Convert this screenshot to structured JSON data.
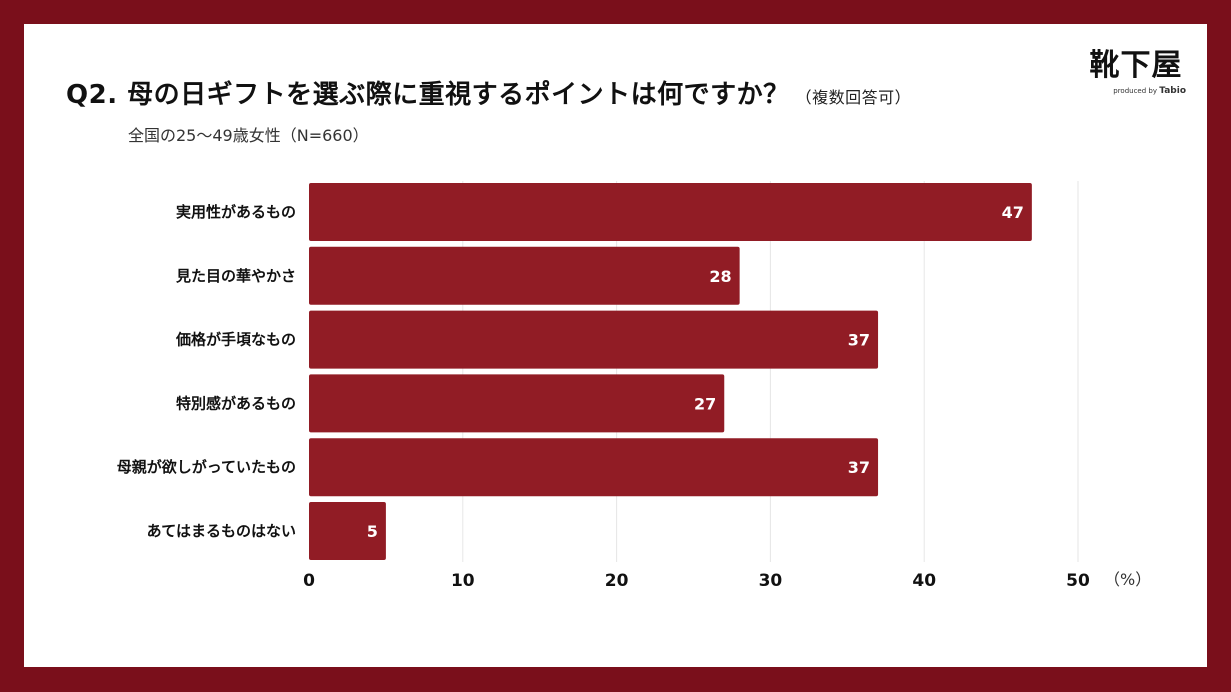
{
  "header": {
    "title": "Q2. 母の日ギフトを選ぶ際に重視するポイントは何ですか？",
    "title_note": "（複数回答可）",
    "subtitle": "全国の25〜49歳女性（N=660）"
  },
  "logo": {
    "name": "靴下屋",
    "produced_by": "produced by",
    "brand": "Tabio"
  },
  "chart_data": {
    "type": "bar",
    "orientation": "horizontal",
    "categories": [
      "実用性があるもの",
      "見た目の華やかさ",
      "価格が手頃なもの",
      "特別感があるもの",
      "母親が欲しがっていたもの",
      "あてはまるものはない"
    ],
    "values": [
      47,
      28,
      37,
      27,
      37,
      5
    ],
    "value_labels": [
      "47",
      "28",
      "37",
      "27",
      "37",
      "5"
    ],
    "xlim": [
      0,
      50
    ],
    "xticks": [
      "0",
      "10",
      "20",
      "30",
      "40",
      "50"
    ],
    "xunit": "（%）",
    "grid": true,
    "bar_color": "#911c25"
  }
}
